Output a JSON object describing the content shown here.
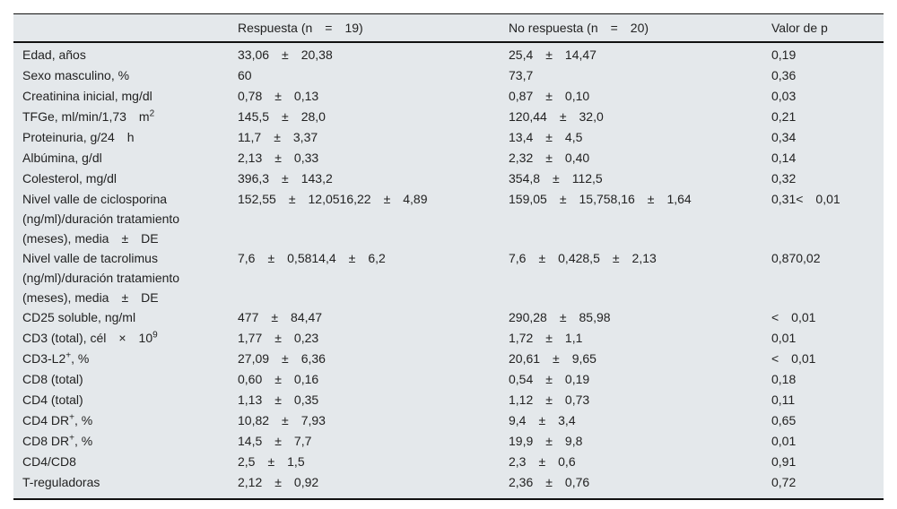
{
  "table": {
    "headers": [
      {
        "label": ""
      },
      {
        "label": "Respuesta (n = 19)"
      },
      {
        "label": "No respuesta (n = 20)"
      },
      {
        "label": "Valor de p"
      }
    ],
    "rows": [
      {
        "label": "Edad, años",
        "respuesta": "33,06 ± 20,38",
        "no_respuesta": "25,4 ± 14,47",
        "p": "0,19"
      },
      {
        "label": "Sexo masculino, %",
        "respuesta": "60",
        "no_respuesta": "73,7",
        "p": "0,36"
      },
      {
        "label": "Creatinina inicial, mg/dl",
        "respuesta": "0,78 ± 0,13",
        "no_respuesta": "0,87 ± 0,10",
        "p": "0,03"
      },
      {
        "label": "TFGe, ml/min/1,73 m",
        "label_sup": "2",
        "respuesta": "145,5 ± 28,0",
        "no_respuesta": "120,44 ± 32,0",
        "p": "0,21"
      },
      {
        "label": "Proteinuria, g/24 h",
        "respuesta": "11,7 ± 3,37",
        "no_respuesta": "13,4 ± 4,5",
        "p": "0,34"
      },
      {
        "label": "Albúmina, g/dl",
        "respuesta": "2,13 ± 0,33",
        "no_respuesta": "2,32 ± 0,40",
        "p": "0,14"
      },
      {
        "label": "Colesterol, mg/dl",
        "respuesta": "396,3 ± 143,2",
        "no_respuesta": "354,8 ± 112,5",
        "p": "0,32"
      },
      {
        "label": "Nivel valle de ciclosporina (ng/ml)/duración tratamiento (meses), media ± DE",
        "respuesta": "152,55 ± 12,0516,22 ± 4,89",
        "no_respuesta": "159,05 ± 15,758,16 ± 1,64",
        "p": "0,31< 0,01"
      },
      {
        "label": "Nivel valle de tacrolimus (ng/ml)/duración tratamiento (meses), media ± DE",
        "respuesta": "7,6 ± 0,5814,4 ± 6,2",
        "no_respuesta": "7,6 ± 0,428,5 ± 2,13",
        "p": "0,870,02"
      },
      {
        "label": "CD25 soluble, ng/ml",
        "respuesta": "477 ± 84,47",
        "no_respuesta": "290,28 ± 85,98",
        "p": "< 0,01"
      },
      {
        "label": "CD3 (total), cél × 10",
        "label_sup": "9",
        "respuesta": "1,77 ± 0,23",
        "no_respuesta": "1,72 ± 1,1",
        "p": "0,01"
      },
      {
        "label": "CD3-L2",
        "label_sup": "+",
        "label_after": ", %",
        "respuesta": "27,09 ± 6,36",
        "no_respuesta": "20,61 ± 9,65",
        "p": "< 0,01"
      },
      {
        "label": "CD8 (total)",
        "respuesta": "0,60 ± 0,16",
        "no_respuesta": "0,54 ± 0,19",
        "p": "0,18"
      },
      {
        "label": "CD4 (total)",
        "respuesta": "1,13 ± 0,35",
        "no_respuesta": "1,12 ± 0,73",
        "p": "0,11"
      },
      {
        "label": "CD4 DR",
        "label_sup": "+",
        "label_after": ", %",
        "respuesta": "10,82 ± 7,93",
        "no_respuesta": "9,4 ± 3,4",
        "p": "0,65"
      },
      {
        "label": "CD8 DR",
        "label_sup": "+",
        "label_after": ", %",
        "respuesta": "14,5 ± 7,7",
        "no_respuesta": "19,9 ± 9,8",
        "p": "0,01"
      },
      {
        "label": "CD4/CD8",
        "respuesta": "2,5 ± 1,5",
        "no_respuesta": "2,3 ± 0,6",
        "p": "0,91"
      },
      {
        "label": "T-reguladoras",
        "respuesta": "2,12 ± 0,92",
        "no_respuesta": "2,36 ± 0,76",
        "p": "0,72"
      }
    ]
  }
}
